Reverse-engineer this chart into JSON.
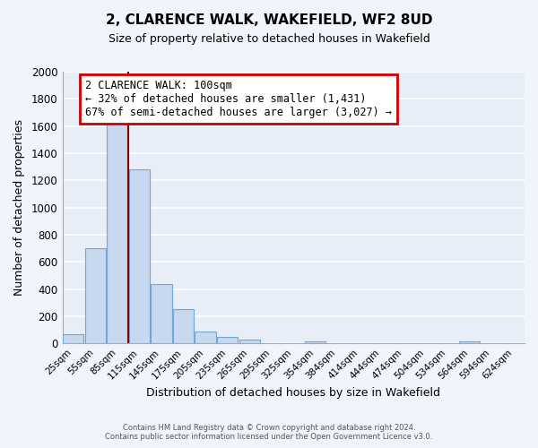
{
  "title": "2, CLARENCE WALK, WAKEFIELD, WF2 8UD",
  "subtitle": "Size of property relative to detached houses in Wakefield",
  "xlabel": "Distribution of detached houses by size in Wakefield",
  "ylabel": "Number of detached properties",
  "bar_labels": [
    "25sqm",
    "55sqm",
    "85sqm",
    "115sqm",
    "145sqm",
    "175sqm",
    "205sqm",
    "235sqm",
    "265sqm",
    "295sqm",
    "325sqm",
    "354sqm",
    "384sqm",
    "414sqm",
    "444sqm",
    "474sqm",
    "504sqm",
    "534sqm",
    "564sqm",
    "594sqm",
    "624sqm"
  ],
  "bar_values": [
    70,
    700,
    1640,
    1280,
    440,
    250,
    90,
    50,
    28,
    0,
    0,
    18,
    0,
    0,
    0,
    0,
    0,
    0,
    18,
    0,
    0
  ],
  "bar_color": "#c8d8ee",
  "bar_edge_color": "#6ea8d8",
  "bar_width": 0.95,
  "ylim": [
    0,
    2000
  ],
  "yticks": [
    0,
    200,
    400,
    600,
    800,
    1000,
    1200,
    1400,
    1600,
    1800,
    2000
  ],
  "property_line_color": "#8b0000",
  "annotation_title": "2 CLARENCE WALK: 100sqm",
  "annotation_line1": "← 32% of detached houses are smaller (1,431)",
  "annotation_line2": "67% of semi-detached houses are larger (3,027) →",
  "footer_line1": "Contains HM Land Registry data © Crown copyright and database right 2024.",
  "footer_line2": "Contains public sector information licensed under the Open Government Licence v3.0.",
  "background_color": "#f0f4fb",
  "plot_bg_color": "#e8eef8",
  "grid_color": "#d0d8e8"
}
